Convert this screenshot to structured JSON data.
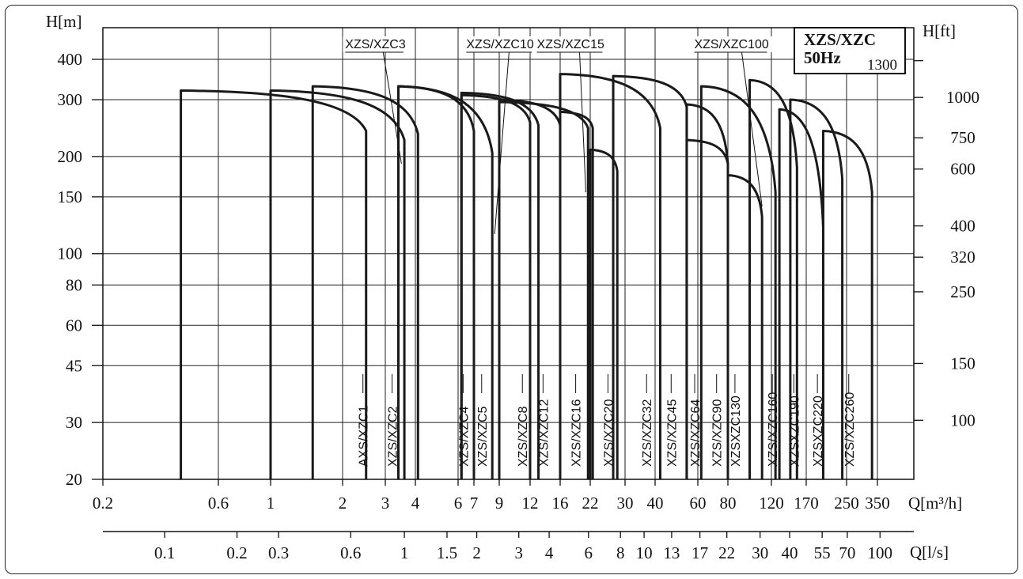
{
  "chart_data": {
    "type": "line",
    "title": "XZS/XZC",
    "subtitle": "50Hz",
    "box_note": "1300",
    "xlabel": "Q[m³/h]",
    "x2label": "Q[l/s]",
    "ylabel": "H[m]",
    "y2label": "H[ft]",
    "x_scale": "log",
    "y_scale": "log",
    "xlim": [
      0.2,
      420
    ],
    "ylim": [
      20,
      500
    ],
    "grid": true,
    "x_ticks": [
      "0.2",
      "0.6",
      "1",
      "2",
      "3",
      "4",
      "6",
      "7",
      "9",
      "12",
      "16",
      "22",
      "30",
      "40",
      "60",
      "80",
      "120",
      "170",
      "250",
      "350"
    ],
    "x_tick_values": [
      0.2,
      0.6,
      1,
      2,
      3,
      4,
      6,
      7,
      9,
      12,
      16,
      22,
      30,
      40,
      60,
      80,
      120,
      170,
      250,
      350
    ],
    "x2_ticks": [
      "0.1",
      "0.2",
      "0.3",
      "0.6",
      "1",
      "1.5",
      "2",
      "3",
      "4",
      "6",
      "8",
      "10",
      "13",
      "17",
      "22",
      "30",
      "40",
      "55",
      "70",
      "100"
    ],
    "x2_tick_values": [
      0.1,
      0.2,
      0.3,
      0.6,
      1,
      1.5,
      2,
      3,
      4,
      6,
      8,
      10,
      13,
      17,
      22,
      30,
      40,
      55,
      70,
      100
    ],
    "y_ticks": [
      "400",
      "300",
      "200",
      "150",
      "100",
      "80",
      "60",
      "45",
      "30",
      "20"
    ],
    "y_tick_values": [
      400,
      300,
      200,
      150,
      100,
      80,
      60,
      45,
      30,
      20
    ],
    "y2_ticks": [
      "1300",
      "1000",
      "750",
      "600",
      "400",
      "320",
      "250",
      "150",
      "100"
    ],
    "y2_tick_values": [
      1300,
      1000,
      750,
      600,
      400,
      320,
      250,
      150,
      100
    ],
    "series": [
      {
        "name": "XZS/XZC1",
        "qmin": 0.42,
        "qmax": 2.5,
        "hmax": 320,
        "hend": 240
      },
      {
        "name": "XZS/XZC2",
        "qmin": 1.0,
        "qmax": 3.6,
        "hmax": 320,
        "hend": 225
      },
      {
        "name": "XZS/XZC3",
        "qmin": 1.5,
        "qmax": 4.1,
        "hmax": 330,
        "hend": 235
      },
      {
        "name": "XZS/XZC4",
        "qmin": 3.4,
        "qmax": 7.0,
        "hmax": 330,
        "hend": 240
      },
      {
        "name": "XZS/XZC5",
        "qmin": 3.4,
        "qmax": 8.4,
        "hmax": 330,
        "hend": 205
      },
      {
        "name": "XZS/XZC8",
        "qmin": 6.2,
        "qmax": 12.0,
        "hmax": 310,
        "hend": 255
      },
      {
        "name": "XZS/XZC10",
        "qmin": 6.2,
        "qmax": 13.0,
        "hmax": 315,
        "hend": 250
      },
      {
        "name": "XZS/XZC12",
        "qmin": 9.0,
        "qmax": 16.0,
        "hmax": 300,
        "hend": 250
      },
      {
        "name": "XZS/XZC15",
        "qmin": 9.0,
        "qmax": 21.5,
        "hmax": 295,
        "hend": 245
      },
      {
        "name": "XZS/XZC16",
        "qmin": 16.0,
        "qmax": 22.5,
        "hmax": 275,
        "hend": 245
      },
      {
        "name": "XZS/XZC20",
        "qmin": 22.0,
        "qmax": 28.0,
        "hmax": 210,
        "hend": 180
      },
      {
        "name": "XZS/XZC32",
        "qmin": 16.0,
        "qmax": 42.0,
        "hmax": 360,
        "hend": 245
      },
      {
        "name": "XZS/XZC45",
        "qmin": 27.0,
        "qmax": 54.0,
        "hmax": 355,
        "hend": 285
      },
      {
        "name": "XZS/XZC64",
        "qmin": 54.0,
        "qmax": 80.0,
        "hmax": 290,
        "hend": 190
      },
      {
        "name": "XZS/XZC90",
        "qmin": 54.0,
        "qmax": 80.0,
        "hmax": 225,
        "hend": 190
      },
      {
        "name": "XZS/XZC100",
        "qmin": 62.0,
        "qmax": 125.0,
        "hmax": 330,
        "hend": 155
      },
      {
        "name": "XZSXZC130",
        "qmin": 80.0,
        "qmax": 110.0,
        "hmax": 175,
        "hend": 130
      },
      {
        "name": "XZS/XZC160",
        "qmin": 98.0,
        "qmax": 155.0,
        "hmax": 345,
        "hend": 185
      },
      {
        "name": "XZSXZC190",
        "qmin": 130.0,
        "qmax": 200.0,
        "hmax": 280,
        "hend": 120
      },
      {
        "name": "XZSXZC220",
        "qmin": 145.0,
        "qmax": 240.0,
        "hmax": 300,
        "hend": 170
      },
      {
        "name": "XZSXZC260",
        "qmin": 200.0,
        "qmax": 330.0,
        "hmax": 240,
        "hend": 155
      }
    ]
  },
  "labels": {
    "bottom": [
      {
        "text": "AXS/XZC1",
        "q": 2.5
      },
      {
        "text": "XZS/XZC2",
        "q": 3.3
      },
      {
        "text": "XZS/XZC4",
        "q": 6.5
      },
      {
        "text": "XZS/XZC5",
        "q": 7.8
      },
      {
        "text": "XZS/XZC8",
        "q": 11.5
      },
      {
        "text": "XZS/XZC12",
        "q": 14.0
      },
      {
        "text": "XZS/XZC16",
        "q": 19.5
      },
      {
        "text": "XZS/XZC20",
        "q": 26.5
      },
      {
        "text": "XZS/XZC32",
        "q": 38.0
      },
      {
        "text": "XZS/XZC45",
        "q": 48.0
      },
      {
        "text": "XZS/XZC64",
        "q": 60.0
      },
      {
        "text": "XZS/XZC90",
        "q": 74.0
      },
      {
        "text": "XZSXZC130",
        "q": 88.0
      },
      {
        "text": "XZS/XZC160",
        "q": 125.0
      },
      {
        "text": "XZSXZC190",
        "q": 155.0
      },
      {
        "text": "XZSXZC220",
        "q": 195.0
      },
      {
        "text": "XZS/XZC260",
        "q": 265.0
      }
    ],
    "top": [
      {
        "text": "XZS/XZC3",
        "q": 2.05
      },
      {
        "text": "XZS/XZC10",
        "q": 6.5
      },
      {
        "text": "XZS/XZC15",
        "q": 12.8
      },
      {
        "text": "XZS/XZC100",
        "q": 58.0
      }
    ]
  }
}
